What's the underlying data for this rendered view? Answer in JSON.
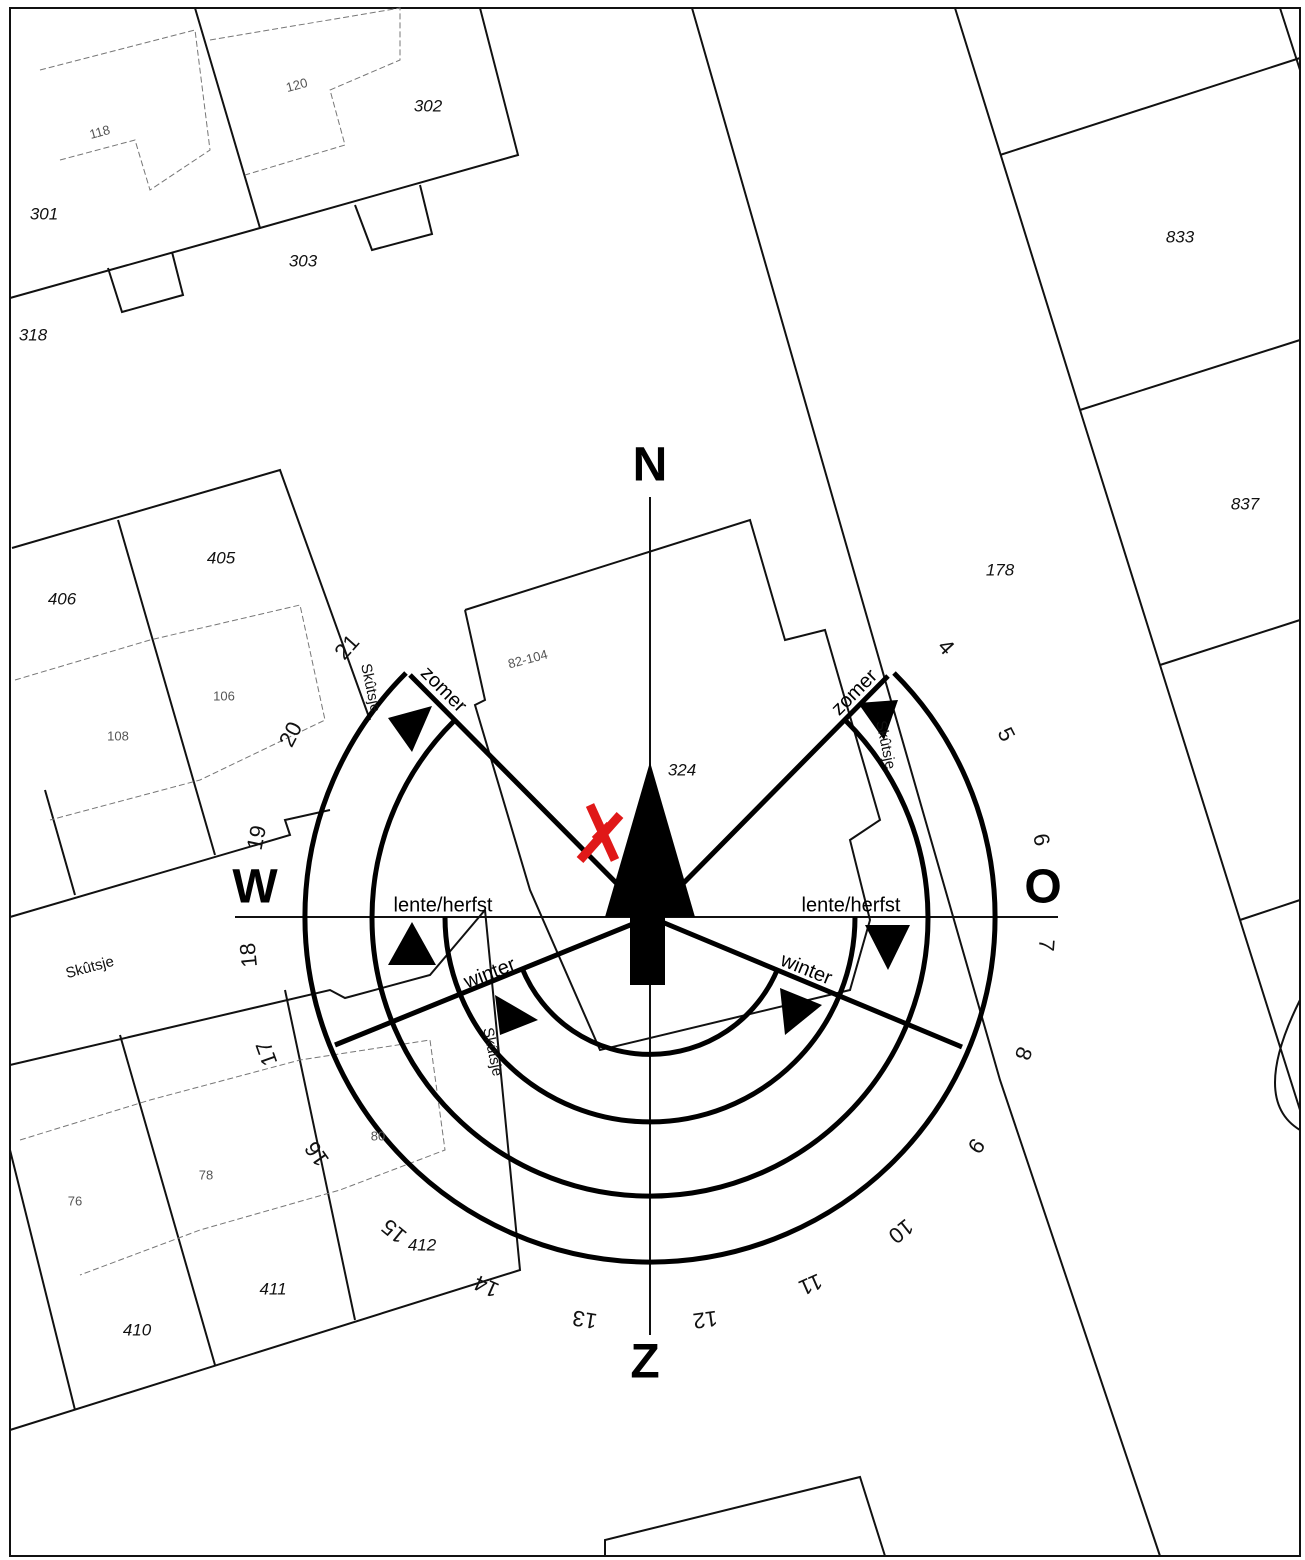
{
  "compass": {
    "north": "N",
    "east": "O",
    "south": "Z",
    "west": "W"
  },
  "season_labels": [
    "zomer",
    "zomer",
    "lente/herfst",
    "lente/herfst",
    "winter",
    "winter"
  ],
  "hours": [
    "4",
    "5",
    "6",
    "7",
    "8",
    "9",
    "10",
    "11",
    "12",
    "13",
    "14",
    "15",
    "16",
    "17",
    "18",
    "19",
    "20",
    "21"
  ],
  "parcels": [
    "301",
    "302",
    "303",
    "318",
    "118",
    "120",
    "833",
    "837",
    "178",
    "405",
    "406",
    "106",
    "108",
    "82-104",
    "324",
    "76",
    "78",
    "80",
    "410",
    "411",
    "412"
  ],
  "streets": [
    "Skûtsje",
    "Skûtsje",
    "Skûtsje",
    "Skûtsje"
  ]
}
